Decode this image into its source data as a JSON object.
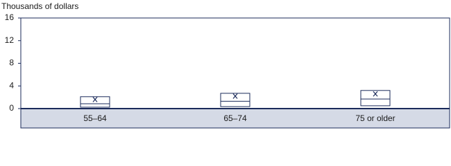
{
  "chart_data": {
    "type": "box",
    "y_label": "Thousands of dollars",
    "categories": [
      "55–64",
      "65–74",
      "75 or older"
    ],
    "q1": [
      0.25,
      0.35,
      0.5
    ],
    "median": [
      0.85,
      1.3,
      1.7
    ],
    "q3": [
      2.1,
      2.7,
      3.2
    ],
    "mean": [
      1.6,
      2.2,
      2.6
    ],
    "ylim": [
      0,
      16
    ],
    "yticks": [
      0,
      4,
      8,
      12,
      16
    ],
    "color": "#1a2a5a",
    "band_color": "#d5dae6"
  }
}
